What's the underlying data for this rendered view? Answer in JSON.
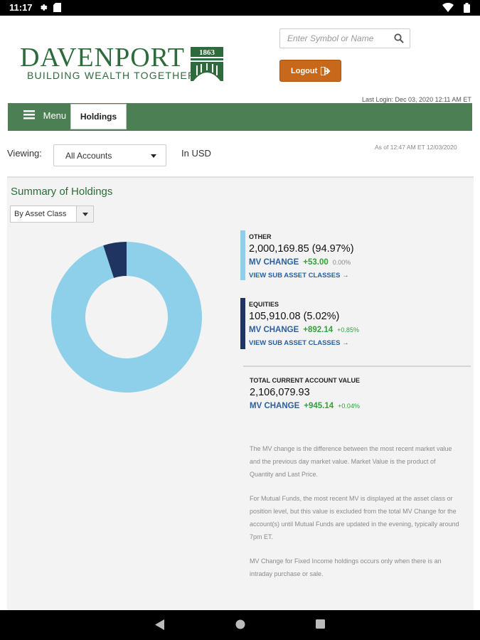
{
  "status_bar": {
    "time": "11:17",
    "icons": [
      "settings-icon",
      "sd-card-icon",
      "wifi-icon",
      "battery-icon"
    ]
  },
  "header": {
    "logo_name": "DAVENPORT",
    "logo_tagline": "BUILDING WEALTH TOGETHER",
    "logo_year": "1863",
    "search_placeholder": "Enter Symbol or Name",
    "logout_label": "Logout",
    "last_login": "Last Login: Dec 03, 2020 12:11 AM ET"
  },
  "nav": {
    "menu_label": "Menu",
    "active_tab": "Holdings"
  },
  "viewing": {
    "label": "Viewing:",
    "account": "All Accounts",
    "currency": "In USD",
    "as_of": "As of 12:47 AM ET 12/03/2020"
  },
  "summary": {
    "title": "Summary of Holdings",
    "group_by": "By Asset Class"
  },
  "colors": {
    "brand_green": "#2e6b3c",
    "nav_green": "#4d7f55",
    "logout_orange": "#c8681a",
    "other_light_blue": "#8ecfea",
    "equities_navy": "#1f3460",
    "link_blue": "#2b5f9e",
    "positive_green": "#35a03a"
  },
  "chart_data": {
    "type": "pie",
    "categories": [
      "OTHER",
      "EQUITIES"
    ],
    "values": [
      94.97,
      5.02
    ],
    "colors": [
      "#8ecfea",
      "#1f3460"
    ]
  },
  "holdings": [
    {
      "name": "OTHER",
      "value": "2,000,169.85 (94.97%)",
      "mv_label": "MV CHANGE",
      "mv_change": "+53.00",
      "mv_pct": "0.00%",
      "link": "VIEW SUB ASSET CLASSES →",
      "color": "#8ecfea"
    },
    {
      "name": "EQUITIES",
      "value": "105,910.08 (5.02%)",
      "mv_label": "MV CHANGE",
      "mv_change": "+892.14",
      "mv_pct": "+0.85%",
      "link": "VIEW SUB ASSET CLASSES →",
      "color": "#1f3460"
    }
  ],
  "total": {
    "label": "TOTAL CURRENT ACCOUNT VALUE",
    "value": "2,106,079.93",
    "mv_label": "MV CHANGE",
    "mv_change": "+945.14",
    "mv_pct": "+0.04%"
  },
  "notes": [
    "The MV change is the difference between the most recent market value and the previous day market value. Market Value is the product of Quantity and Last Price.",
    "For Mutual Funds, the most recent MV is displayed at the asset class or position level, but this value is excluded from the total MV Change for the account(s) until Mutual Funds are updated in the evening, typically around 7pm ET.",
    "MV Change for Fixed Income holdings occurs only when there is an intraday purchase or sale."
  ]
}
